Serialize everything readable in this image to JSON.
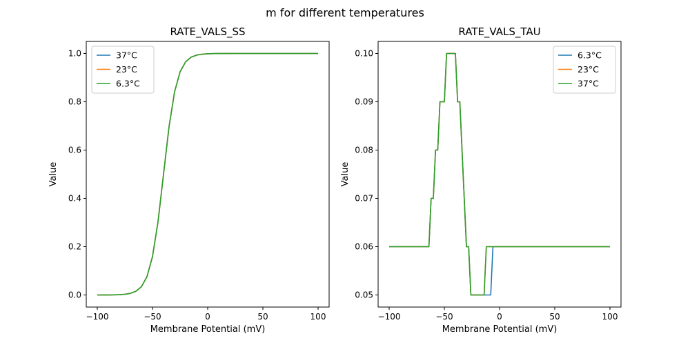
{
  "chart_data": {
    "suptitle": "m for different temperatures",
    "colors": {
      "blue": "#1f77b4",
      "orange": "#ff7f0e",
      "green": "#2ca02c"
    },
    "plots": [
      {
        "type": "line",
        "title": "RATE_VALS_SS",
        "xlabel": "Membrane Potential (mV)",
        "ylabel": "Value",
        "xlim": [
          -110,
          110
        ],
        "ylim": [
          -0.05,
          1.05
        ],
        "xticks": [
          -100,
          -50,
          0,
          50,
          100
        ],
        "xtick_labels": [
          "−100",
          "−50",
          "0",
          "50",
          "100"
        ],
        "yticks": [
          0.0,
          0.2,
          0.4,
          0.6,
          0.8,
          1.0
        ],
        "ytick_labels": [
          "0.0",
          "0.2",
          "0.4",
          "0.6",
          "0.8",
          "1.0"
        ],
        "legend_position": "upper-left",
        "x": [
          -100,
          -95,
          -90,
          -85,
          -80,
          -75,
          -70,
          -65,
          -60,
          -55,
          -50,
          -45,
          -40,
          -35,
          -30,
          -25,
          -20,
          -15,
          -10,
          -5,
          0,
          5,
          10,
          15,
          20,
          100
        ],
        "series": [
          {
            "name": "37°C",
            "color": "#1f77b4",
            "y": [
              0.0,
              0.0001,
              0.0002,
              0.0006,
              0.0013,
              0.0029,
              0.0067,
              0.0153,
              0.0344,
              0.0759,
              0.1589,
              0.3029,
              0.5,
              0.6971,
              0.8411,
              0.9241,
              0.9656,
              0.9847,
              0.9933,
              0.9971,
              0.9987,
              0.9994,
              0.9998,
              0.9999,
              1.0,
              1.0
            ]
          },
          {
            "name": "23°C",
            "color": "#ff7f0e",
            "y": [
              0.0,
              0.0001,
              0.0002,
              0.0006,
              0.0013,
              0.0029,
              0.0067,
              0.0153,
              0.0344,
              0.0759,
              0.1589,
              0.3029,
              0.5,
              0.6971,
              0.8411,
              0.9241,
              0.9656,
              0.9847,
              0.9933,
              0.9971,
              0.9987,
              0.9994,
              0.9998,
              0.9999,
              1.0,
              1.0
            ]
          },
          {
            "name": "6.3°C",
            "color": "#2ca02c",
            "y": [
              0.0,
              0.0001,
              0.0002,
              0.0006,
              0.0013,
              0.0029,
              0.0067,
              0.0153,
              0.0344,
              0.0759,
              0.1589,
              0.3029,
              0.5,
              0.6971,
              0.8411,
              0.9241,
              0.9656,
              0.9847,
              0.9933,
              0.9971,
              0.9987,
              0.9994,
              0.9998,
              0.9999,
              1.0,
              1.0
            ]
          }
        ]
      },
      {
        "type": "line",
        "title": "RATE_VALS_TAU",
        "xlabel": "Membrane Potential (mV)",
        "ylabel": "Value",
        "xlim": [
          -110,
          110
        ],
        "ylim": [
          0.0475,
          0.1025
        ],
        "xticks": [
          -100,
          -50,
          0,
          50,
          100
        ],
        "xtick_labels": [
          "−100",
          "−50",
          "0",
          "50",
          "100"
        ],
        "yticks": [
          0.05,
          0.06,
          0.07,
          0.08,
          0.09,
          0.1
        ],
        "ytick_labels": [
          "0.05",
          "0.06",
          "0.07",
          "0.08",
          "0.09",
          "0.10"
        ],
        "legend_position": "upper-right",
        "series": [
          {
            "name": "6.3°C",
            "color": "#1f77b4",
            "x": [
              -100,
              -64,
              -62,
              -60,
              -58,
              -56,
              -54,
              -50,
              -48,
              -40,
              -38,
              -36,
              -30,
              -28,
              -26,
              -8,
              -6,
              100
            ],
            "y": [
              0.06,
              0.06,
              0.07,
              0.07,
              0.08,
              0.08,
              0.09,
              0.09,
              0.1,
              0.1,
              0.09,
              0.09,
              0.06,
              0.06,
              0.05,
              0.05,
              0.06,
              0.06
            ]
          },
          {
            "name": "23°C",
            "color": "#ff7f0e",
            "x": [
              -100,
              -64,
              -62,
              -60,
              -58,
              -56,
              -54,
              -50,
              -48,
              -40,
              -38,
              -36,
              -30,
              -28,
              -26,
              -14,
              -12,
              100
            ],
            "y": [
              0.06,
              0.06,
              0.07,
              0.07,
              0.08,
              0.08,
              0.09,
              0.09,
              0.1,
              0.1,
              0.09,
              0.09,
              0.06,
              0.06,
              0.05,
              0.05,
              0.06,
              0.06
            ]
          },
          {
            "name": "37°C",
            "color": "#2ca02c",
            "x": [
              -100,
              -64,
              -62,
              -60,
              -58,
              -56,
              -54,
              -50,
              -48,
              -40,
              -38,
              -36,
              -30,
              -28,
              -26,
              -14,
              -12,
              100
            ],
            "y": [
              0.06,
              0.06,
              0.07,
              0.07,
              0.08,
              0.08,
              0.09,
              0.09,
              0.1,
              0.1,
              0.09,
              0.09,
              0.06,
              0.06,
              0.05,
              0.05,
              0.06,
              0.06
            ]
          }
        ]
      }
    ]
  }
}
